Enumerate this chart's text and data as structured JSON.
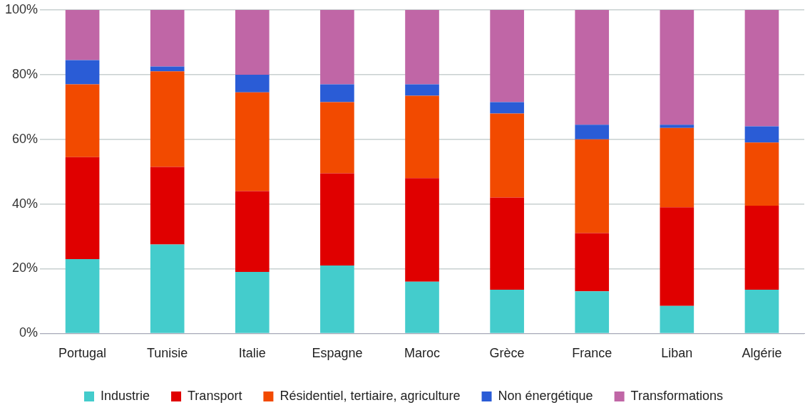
{
  "chart_data": {
    "type": "bar",
    "stacked": true,
    "categories": [
      "Portugal",
      "Tunisie",
      "Italie",
      "Espagne",
      "Maroc",
      "Grèce",
      "France",
      "Liban",
      "Algérie"
    ],
    "series": [
      {
        "name": "Industrie",
        "color": "#44cccc",
        "values": [
          23,
          27.5,
          19,
          21,
          16,
          13.5,
          13,
          8.5,
          13.5
        ]
      },
      {
        "name": "Transport",
        "color": "#e00000",
        "values": [
          31.5,
          24,
          25,
          28.5,
          32,
          28.5,
          18,
          30.5,
          26
        ]
      },
      {
        "name": "Résidentiel, tertiaire, agriculture",
        "color": "#f24a00",
        "values": [
          22.5,
          29.5,
          30.5,
          22,
          25.5,
          26,
          29,
          24.5,
          19.5
        ]
      },
      {
        "name": "Non énergétique",
        "color": "#2a5cd6",
        "values": [
          7.5,
          1.5,
          5.5,
          5.5,
          3.5,
          3.5,
          4.5,
          1,
          5
        ]
      },
      {
        "name": "Transformations",
        "color": "#c066a6",
        "values": [
          15.5,
          17.5,
          20,
          23,
          23,
          28.5,
          35.5,
          35.5,
          36
        ]
      }
    ],
    "ylim": [
      0,
      100
    ],
    "yticks": [
      {
        "value": 0,
        "label": "0%"
      },
      {
        "value": 20,
        "label": "20%"
      },
      {
        "value": 40,
        "label": "40%"
      },
      {
        "value": 60,
        "label": "60%"
      },
      {
        "value": 80,
        "label": "80%"
      },
      {
        "value": 100,
        "label": "100%"
      }
    ],
    "grid": "y",
    "legend": "bottom"
  }
}
